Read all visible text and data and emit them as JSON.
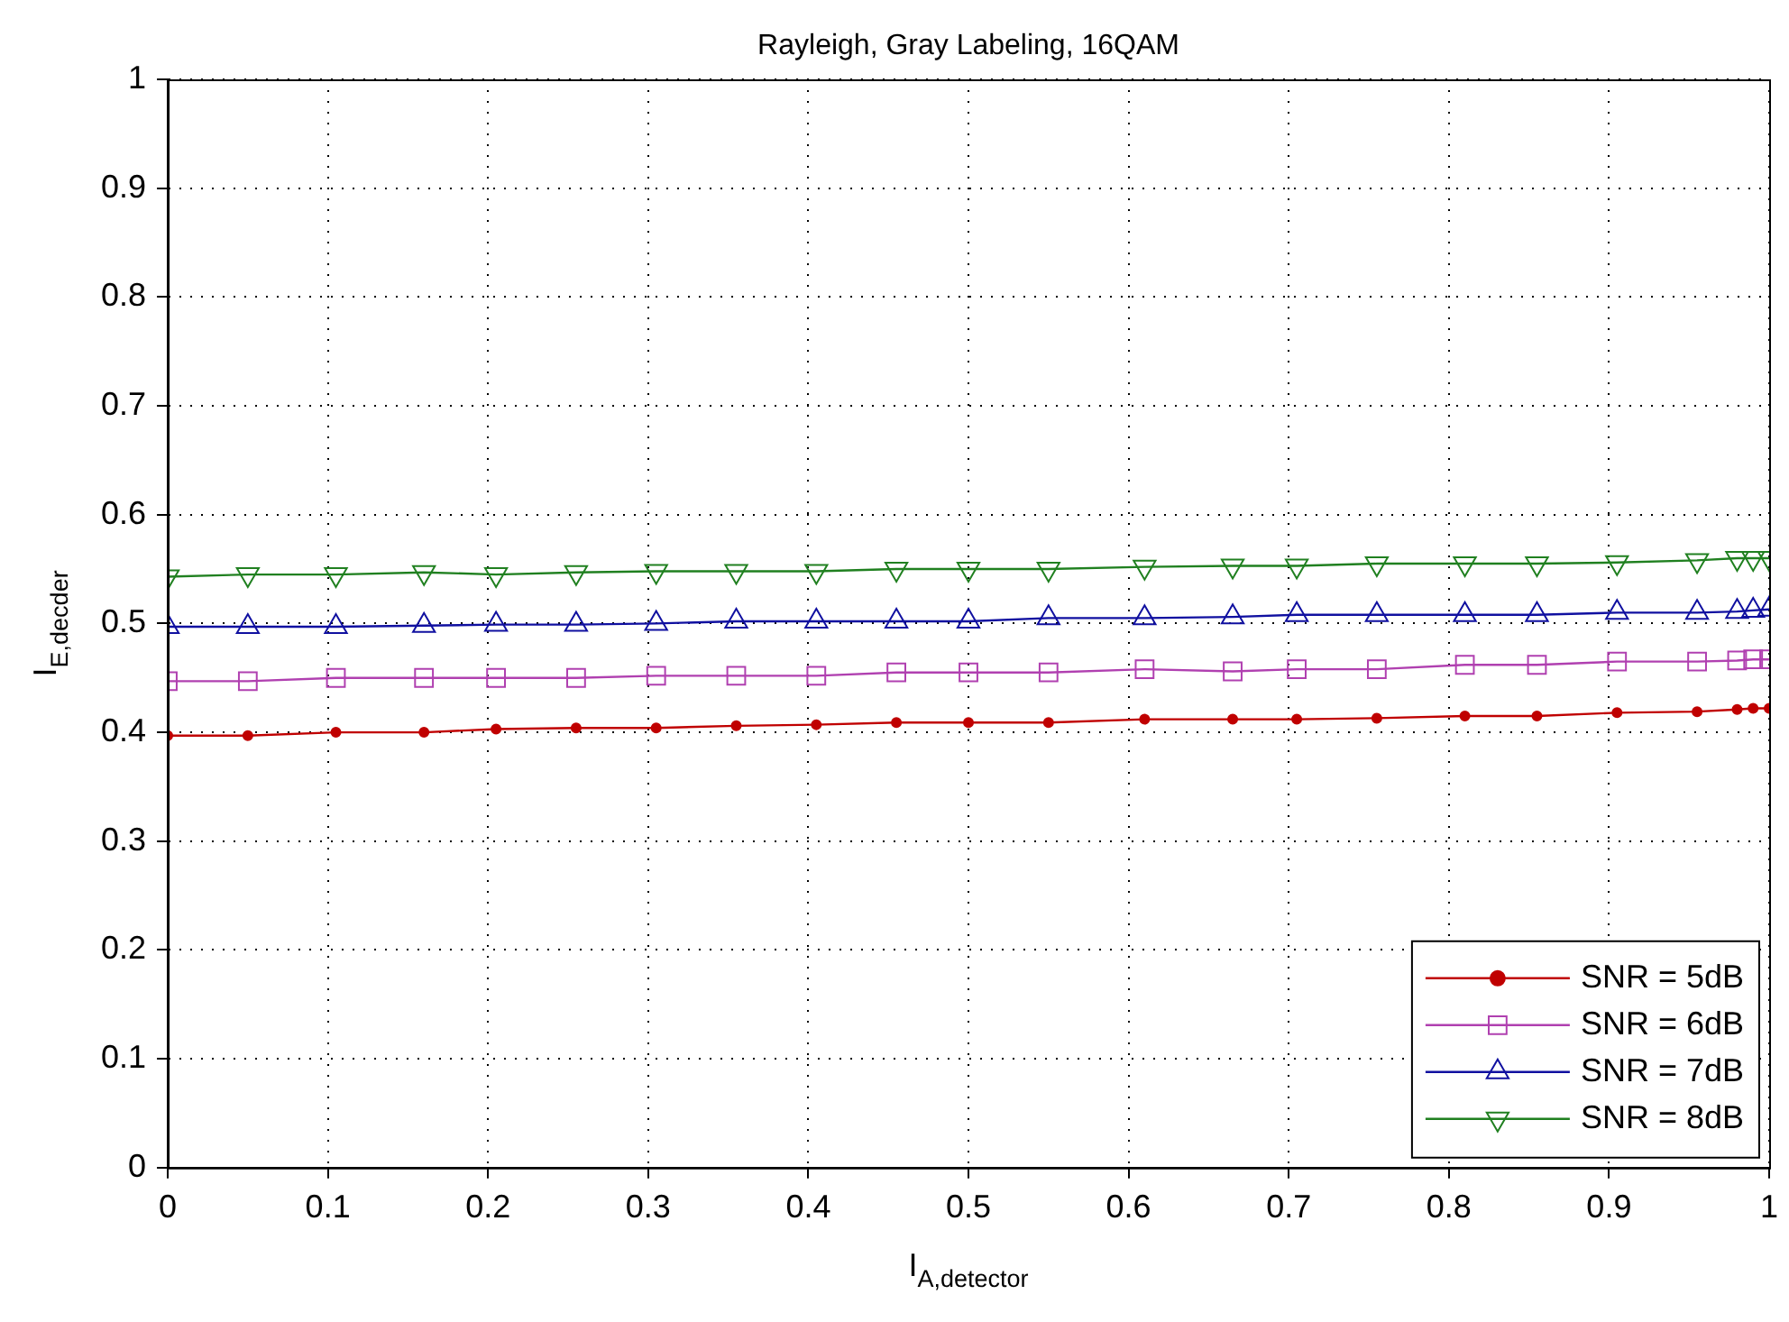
{
  "chart_data": {
    "type": "line",
    "title": "Rayleigh, Gray Labeling, 16QAM",
    "xlabel": "I$_{A,detector}$",
    "ylabel": "I$_{E,decder}$",
    "x": [
      0,
      0.05,
      0.105,
      0.16,
      0.205,
      0.255,
      0.305,
      0.355,
      0.405,
      0.455,
      0.5,
      0.55,
      0.61,
      0.665,
      0.705,
      0.755,
      0.81,
      0.855,
      0.905,
      0.955,
      0.98,
      0.99,
      1
    ],
    "series": [
      {
        "name": "SNR = 5dB",
        "color": "#c00000",
        "marker": "circle",
        "values": [
          0.397,
          0.397,
          0.4,
          0.4,
          0.403,
          0.404,
          0.404,
          0.406,
          0.407,
          0.409,
          0.409,
          0.409,
          0.412,
          0.412,
          0.412,
          0.413,
          0.415,
          0.415,
          0.418,
          0.419,
          0.421,
          0.422,
          0.422
        ]
      },
      {
        "name": "SNR = 6dB",
        "color": "#b040b0",
        "marker": "square",
        "values": [
          0.447,
          0.447,
          0.45,
          0.45,
          0.45,
          0.45,
          0.452,
          0.452,
          0.452,
          0.455,
          0.455,
          0.455,
          0.458,
          0.456,
          0.458,
          0.458,
          0.462,
          0.462,
          0.465,
          0.465,
          0.466,
          0.467,
          0.467
        ]
      },
      {
        "name": "SNR = 7dB",
        "color": "#1010a0",
        "marker": "triangle",
        "values": [
          0.497,
          0.497,
          0.497,
          0.498,
          0.499,
          0.499,
          0.5,
          0.502,
          0.502,
          0.502,
          0.502,
          0.505,
          0.505,
          0.506,
          0.508,
          0.508,
          0.508,
          0.508,
          0.51,
          0.51,
          0.511,
          0.512,
          0.513
        ]
      },
      {
        "name": "SNR = 8dB",
        "color": "#208020",
        "marker": "triangle-down",
        "values": [
          0.543,
          0.545,
          0.545,
          0.547,
          0.545,
          0.547,
          0.548,
          0.548,
          0.548,
          0.55,
          0.55,
          0.55,
          0.552,
          0.553,
          0.553,
          0.555,
          0.555,
          0.555,
          0.556,
          0.558,
          0.56,
          0.56,
          0.56
        ]
      }
    ],
    "xlim": [
      0,
      1
    ],
    "ylim": [
      0,
      1
    ],
    "xticks": [
      0,
      0.1,
      0.2,
      0.3,
      0.4,
      0.5,
      0.6,
      0.7,
      0.8,
      0.9,
      1
    ],
    "yticks": [
      0,
      0.1,
      0.2,
      0.3,
      0.4,
      0.5,
      0.6,
      0.7,
      0.8,
      0.9,
      1
    ],
    "grid": true,
    "legend": "bottom right",
    "line_style": "solid"
  }
}
